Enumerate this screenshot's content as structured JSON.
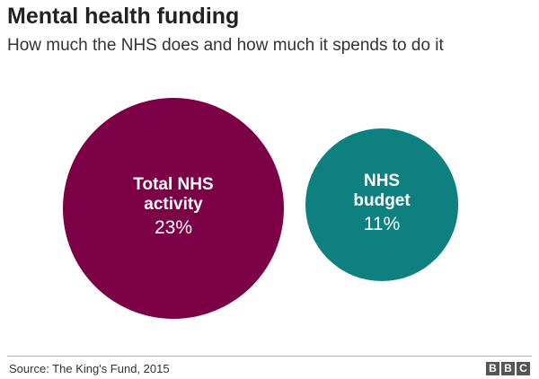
{
  "chart_data": {
    "type": "proportional-circles",
    "title": "Mental health funding",
    "subtitle": "How much the NHS does and how much it spends to do it",
    "categories": [
      "Total NHS activity",
      "NHS budget"
    ],
    "values": [
      23,
      11
    ],
    "value_labels": [
      "23%",
      "11%"
    ],
    "colors": [
      "#7b0046",
      "#0e8080"
    ],
    "source": "Source: The King's Fund, 2015",
    "logo": [
      "B",
      "B",
      "C"
    ]
  }
}
